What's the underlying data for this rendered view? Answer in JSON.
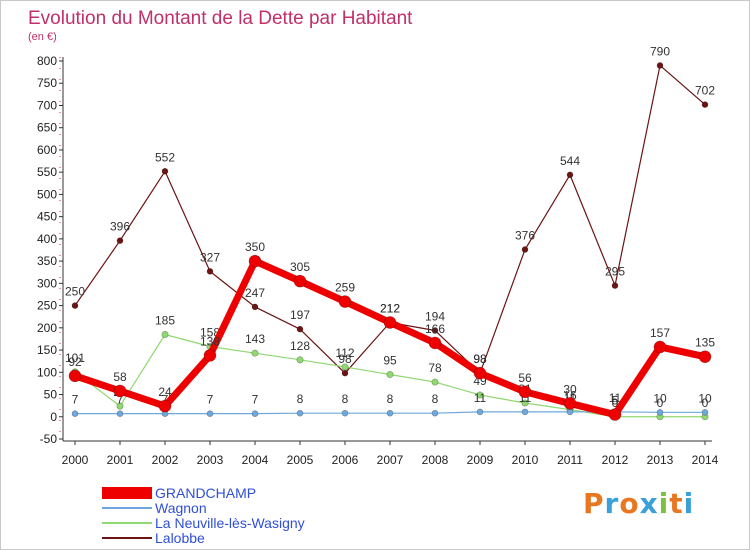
{
  "title": "Evolution du Montant de la Dette par Habitant",
  "subtitle": "(en €)",
  "logo": {
    "letters": [
      "P",
      "r",
      "o",
      "x",
      "i",
      "t",
      "i"
    ],
    "colors": [
      "#e87722",
      "#3aa0d8",
      "#e87722",
      "#3aa0d8",
      "#7cc242",
      "#e87722",
      "#3aa0d8"
    ]
  },
  "chart_data": {
    "type": "line",
    "x": [
      "2000",
      "2001",
      "2002",
      "2003",
      "2004",
      "2005",
      "2006",
      "2007",
      "2008",
      "2009",
      "2010",
      "2011",
      "2012",
      "2013",
      "2014"
    ],
    "ylim": [
      -50,
      800
    ],
    "yticks": [
      "-50",
      "0",
      "50",
      "100",
      "150",
      "200",
      "250",
      "300",
      "350",
      "400",
      "450",
      "500",
      "550",
      "600",
      "650",
      "700",
      "750",
      "800"
    ],
    "grid": false,
    "legend_position": "bottom-left",
    "series": [
      {
        "name": "Lalobbe",
        "color": "#6b1414",
        "values": [
          250,
          396,
          552,
          327,
          247,
          197,
          98,
          212,
          194,
          98,
          376,
          544,
          295,
          790,
          702
        ],
        "labels": [
          "250",
          "396",
          "552",
          "327",
          "247",
          "197",
          "98",
          "212",
          "194",
          "98",
          "376",
          "544",
          "295",
          "790",
          "702"
        ]
      },
      {
        "name": "La Neuville-lès-Wasigny",
        "color": "#90d870",
        "values": [
          101,
          24,
          185,
          158,
          143,
          128,
          112,
          95,
          78,
          49,
          31,
          16,
          0,
          0,
          0
        ],
        "labels": [
          "101",
          "24",
          "185",
          "158",
          "143",
          "128",
          "112",
          "95",
          "78",
          "49",
          "31",
          "16",
          "0",
          "0",
          "0"
        ]
      },
      {
        "name": "Wagnon",
        "color": "#6fa8dc",
        "values": [
          7,
          7,
          7,
          7,
          7,
          8,
          8,
          8,
          8,
          11,
          11,
          11,
          11,
          10,
          10
        ],
        "labels": [
          "7",
          "7",
          "7",
          "7",
          "7",
          "8",
          "8",
          "8",
          "8",
          "11",
          "11",
          "11",
          "11",
          "10",
          "10"
        ]
      },
      {
        "name": "GRANDCHAMP",
        "color": "#ee0000",
        "values": [
          92,
          58,
          24,
          138,
          350,
          305,
          259,
          212,
          166,
          98,
          56,
          30,
          5,
          157,
          135
        ],
        "labels": [
          "92",
          "58",
          "24",
          "138",
          "350",
          "305",
          "259",
          "212",
          "166",
          "98",
          "56",
          "30",
          "5",
          "157",
          "135"
        ]
      }
    ],
    "legend": [
      {
        "name": "GRANDCHAMP",
        "color": "#ee0000",
        "text_color": "#2f4fd9"
      },
      {
        "name": "Wagnon",
        "color": "#6fa8dc",
        "text_color": "#2f4fd9"
      },
      {
        "name": "La Neuville-lès-Wasigny",
        "color": "#90d870",
        "text_color": "#2f4fd9"
      },
      {
        "name": "Lalobbe",
        "color": "#6b1414",
        "text_color": "#2f4fd9"
      }
    ]
  }
}
